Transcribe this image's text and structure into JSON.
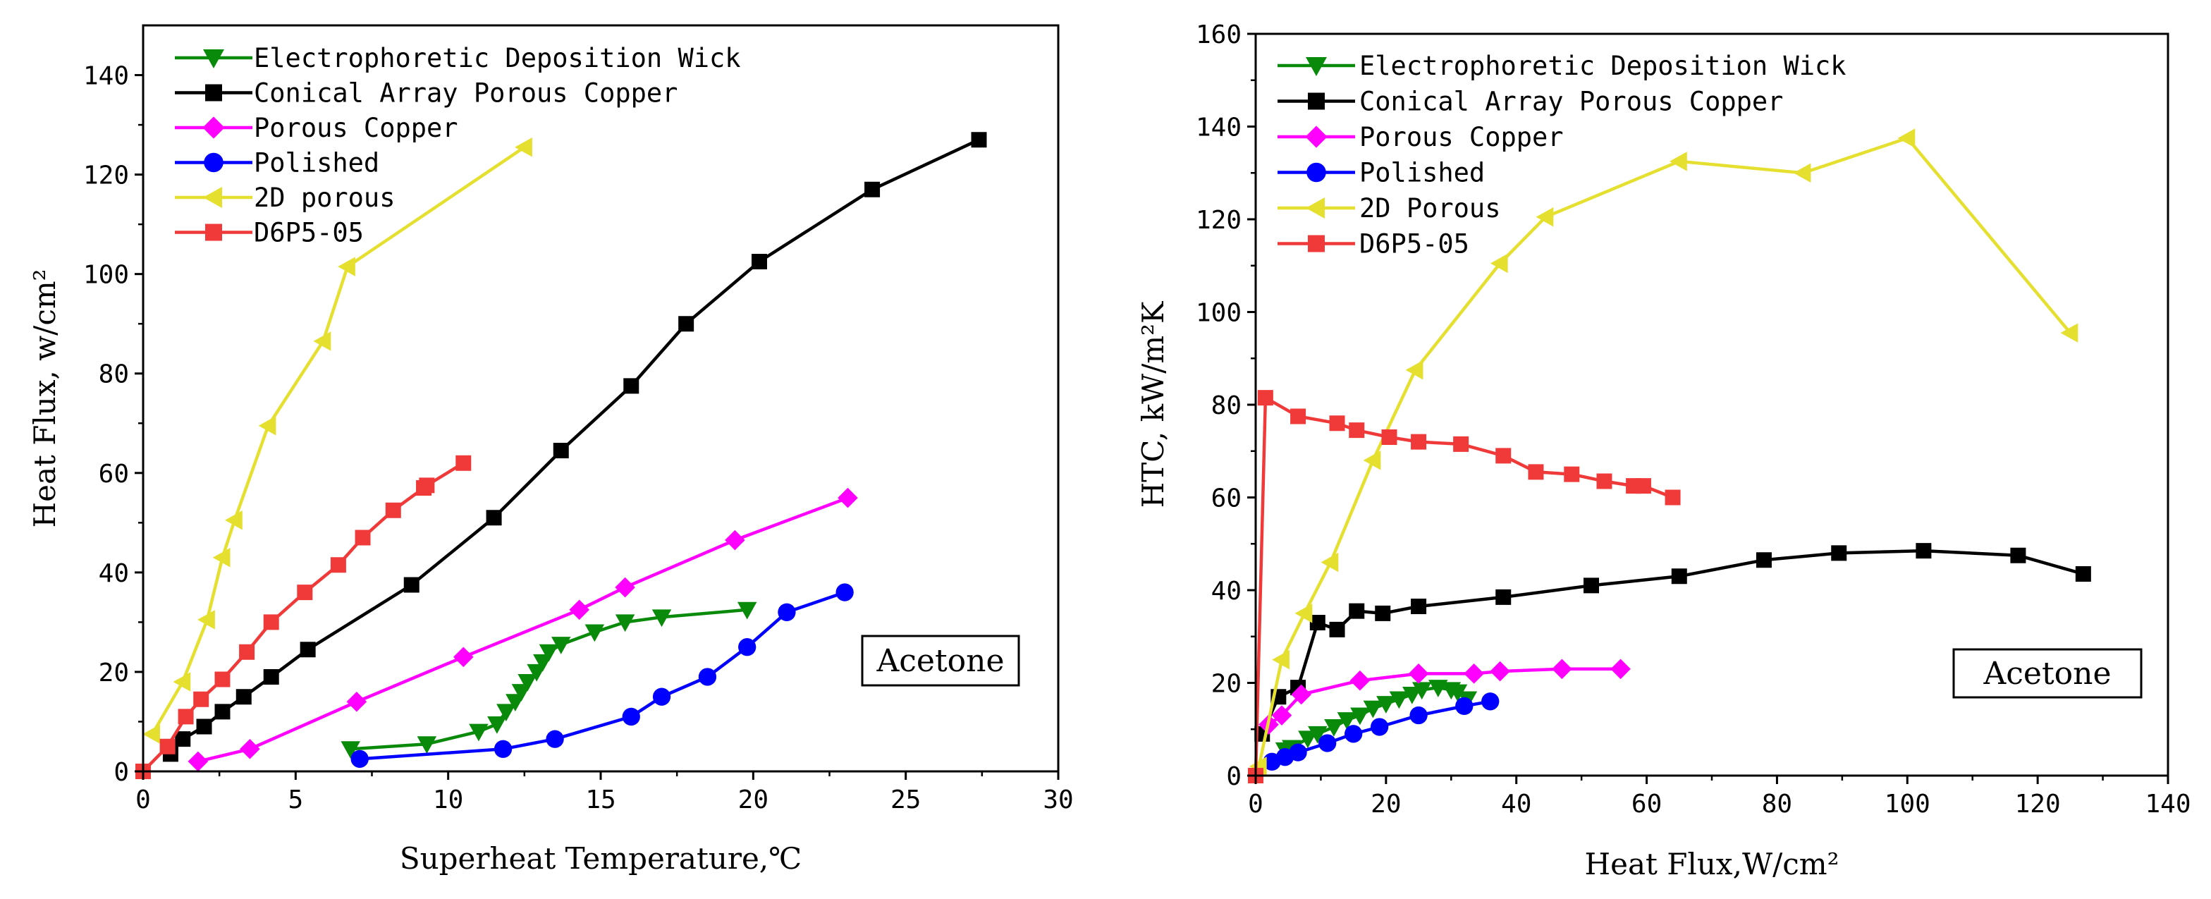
{
  "chart_data": [
    {
      "type": "line",
      "xlabel": "Superheat Temperature,℃",
      "ylabel": "Heat Flux, w/cm²",
      "xlim": [
        0,
        30
      ],
      "ylim": [
        0,
        150
      ],
      "xticks": [
        0,
        5,
        10,
        15,
        20,
        25,
        30
      ],
      "yticks": [
        0,
        20,
        40,
        60,
        80,
        100,
        120,
        140
      ],
      "xtick_labels": [
        "0",
        "5",
        "10",
        "15",
        "20",
        "25",
        "30"
      ],
      "ytick_labels": [
        "0",
        "20",
        "40",
        "60",
        "80",
        "100",
        "120",
        "140"
      ],
      "legend_position": "top-left",
      "annotation": "Acetone",
      "series": [
        {
          "name": "Electrophoretic Deposition Wick",
          "color": "#0a8a0a",
          "marker": "triangle-down",
          "x": [
            6.8,
            9.3,
            11.0,
            11.6,
            11.9,
            12.2,
            12.4,
            12.6,
            12.9,
            13.1,
            13.3,
            13.7,
            14.8,
            15.8,
            17.0,
            19.8
          ],
          "y": [
            4.5,
            5.5,
            8,
            9.5,
            12,
            14,
            16,
            18,
            20,
            22,
            24,
            25.5,
            28,
            30,
            31,
            32.5
          ]
        },
        {
          "name": "Conical Array Porous Copper",
          "color": "#000000",
          "marker": "square",
          "x": [
            0.9,
            1.3,
            2.0,
            2.6,
            3.3,
            4.2,
            5.4,
            8.8,
            11.5,
            13.7,
            16.0,
            17.8,
            20.2,
            23.9,
            27.4
          ],
          "y": [
            3.5,
            6.5,
            9,
            12,
            15,
            19,
            24.5,
            37.5,
            51,
            64.5,
            77.5,
            90,
            102.5,
            117,
            127
          ]
        },
        {
          "name": "Porous Copper",
          "color": "#ff00ff",
          "marker": "diamond",
          "x": [
            1.8,
            3.5,
            7.0,
            10.5,
            14.3,
            15.8,
            19.4,
            23.1
          ],
          "y": [
            2,
            4.5,
            14,
            23,
            32.5,
            37,
            46.5,
            55
          ]
        },
        {
          "name": "Polished",
          "color": "#0000ff",
          "marker": "circle",
          "x": [
            7.1,
            11.8,
            13.5,
            16.0,
            17.0,
            18.5,
            19.8,
            21.1,
            23.0
          ],
          "y": [
            2.5,
            4.5,
            6.5,
            11,
            15,
            19,
            25,
            32,
            36
          ]
        },
        {
          "name": "2D porous",
          "color": "#e5e030",
          "marker": "triangle-left",
          "x": [
            0.3,
            1.3,
            2.1,
            2.6,
            3.0,
            4.1,
            5.9,
            6.7,
            12.5
          ],
          "y": [
            7.5,
            18,
            30.5,
            43,
            50.5,
            69.5,
            86.5,
            101.5,
            125.5
          ]
        },
        {
          "name": "D6P5-05",
          "color": "#f03a3a",
          "marker": "square",
          "x": [
            0.0,
            0.8,
            1.4,
            1.9,
            2.6,
            3.4,
            4.2,
            5.3,
            6.4,
            7.2,
            8.2,
            9.2,
            9.3,
            10.5
          ],
          "y": [
            0,
            5,
            11,
            14.5,
            18.5,
            24,
            30,
            36,
            41.5,
            47,
            52.5,
            57,
            57.5,
            62
          ]
        }
      ]
    },
    {
      "type": "line",
      "xlabel": "Heat Flux,W/cm²",
      "ylabel": "HTC, kW/m²K",
      "xlim": [
        0,
        140
      ],
      "ylim": [
        0,
        160
      ],
      "xticks": [
        0,
        20,
        40,
        60,
        80,
        100,
        120,
        140
      ],
      "yticks": [
        0,
        20,
        40,
        60,
        80,
        100,
        120,
        140,
        160
      ],
      "xtick_labels": [
        "0",
        "20",
        "40",
        "60",
        "80",
        "100",
        "120",
        "140"
      ],
      "ytick_labels": [
        "0",
        "20",
        "40",
        "60",
        "80",
        "100",
        "120",
        "140",
        "160"
      ],
      "legend_position": "top-left",
      "annotation": "Acetone",
      "series": [
        {
          "name": "Electrophoretic Deposition Wick",
          "color": "#0a8a0a",
          "marker": "triangle-down",
          "x": [
            4.5,
            5.5,
            8,
            9.5,
            12,
            14,
            16,
            18,
            20,
            22,
            24,
            25.5,
            28,
            30,
            31,
            32.5
          ],
          "y": [
            5.5,
            6,
            8,
            9,
            10.5,
            12,
            13,
            14.5,
            15.5,
            16.5,
            17.5,
            18.5,
            19,
            18.5,
            18,
            16.5
          ]
        },
        {
          "name": "Conical Array Porous Copper",
          "color": "#000000",
          "marker": "square",
          "x": [
            1,
            3.5,
            6.5,
            9.5,
            12.5,
            15.5,
            19.5,
            25,
            38,
            51.5,
            65,
            78,
            89.5,
            102.5,
            117,
            127
          ],
          "y": [
            9,
            17,
            19,
            33,
            31.5,
            35.5,
            35,
            36.5,
            38.5,
            41,
            43,
            46.5,
            48,
            48.5,
            47.5,
            43.5
          ]
        },
        {
          "name": "Porous Copper",
          "color": "#ff00ff",
          "marker": "diamond",
          "x": [
            2,
            4,
            7,
            16,
            25,
            33.5,
            37.5,
            47,
            56
          ],
          "y": [
            11,
            13,
            17.5,
            20.5,
            22,
            22,
            22.5,
            23,
            23
          ]
        },
        {
          "name": "Polished",
          "color": "#0000ff",
          "marker": "circle",
          "x": [
            2.5,
            4.5,
            6.5,
            11,
            15,
            19,
            25,
            32,
            36
          ],
          "y": [
            3,
            4,
            5,
            7,
            9,
            10.5,
            13,
            15,
            16
          ]
        },
        {
          "name": "2D Porous",
          "color": "#e5e030",
          "marker": "triangle-left",
          "x": [
            0.5,
            4,
            7.5,
            11.5,
            18,
            24.5,
            37.5,
            44.5,
            65,
            84,
            100,
            125
          ],
          "y": [
            2,
            25,
            35,
            46,
            68,
            87.5,
            110.5,
            120.5,
            132.5,
            130,
            137.5,
            95.5
          ]
        },
        {
          "name": "D6P5-05",
          "color": "#f03a3a",
          "marker": "square",
          "x": [
            0,
            1.5,
            6.5,
            12.5,
            15.5,
            20.5,
            25,
            31.5,
            38,
            43,
            48.5,
            53.5,
            58,
            59.5,
            64
          ],
          "y": [
            0,
            81.5,
            77.5,
            76,
            74.5,
            73,
            72,
            71.5,
            69,
            65.5,
            65,
            63.5,
            62.5,
            62.5,
            60
          ]
        }
      ]
    }
  ]
}
